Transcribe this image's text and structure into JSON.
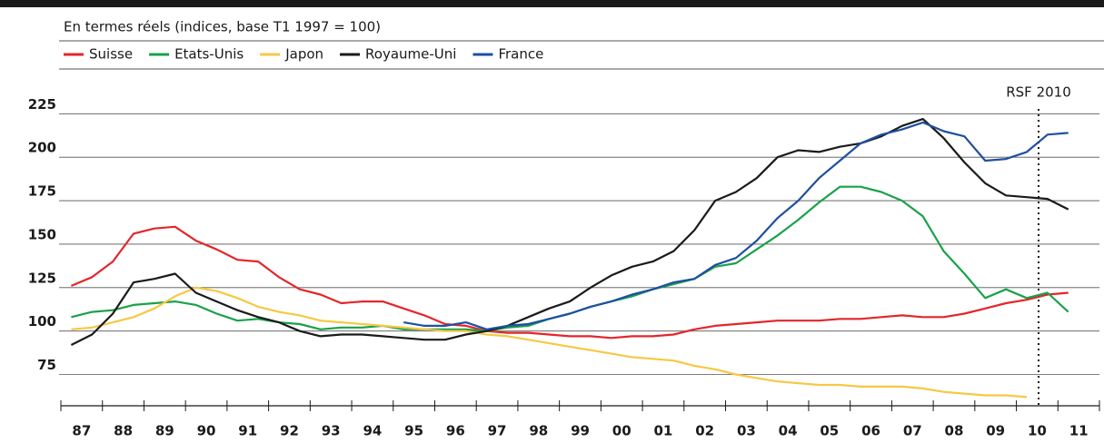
{
  "chart_data": {
    "type": "line",
    "subtitle": "En termes réels (indices, base T1 1997 = 100)",
    "annotation": "RSF 2010",
    "categories": [
      "87",
      null,
      "88",
      null,
      "89",
      null,
      "90",
      null,
      "91",
      null,
      "92",
      null,
      "93",
      null,
      "94",
      null,
      "95",
      null,
      "96",
      null,
      "97",
      null,
      "98",
      null,
      "99",
      null,
      "00",
      null,
      "01",
      null,
      "02",
      null,
      "03",
      null,
      "04",
      null,
      "05",
      null,
      "06",
      null,
      "07",
      null,
      "08",
      null,
      "09",
      null,
      "10",
      null,
      "11"
    ],
    "series": [
      {
        "name": "Suisse",
        "color": "#e3262a",
        "values": [
          126,
          131,
          140,
          156,
          159,
          160,
          152,
          147,
          141,
          140,
          131,
          124,
          121,
          116,
          117,
          117,
          113,
          109,
          104,
          103,
          100,
          99,
          99,
          98,
          97,
          97,
          96,
          97,
          97,
          98,
          101,
          103,
          104,
          105,
          106,
          106,
          106,
          107,
          107,
          108,
          109,
          108,
          108,
          110,
          113,
          116,
          118,
          121,
          122
        ]
      },
      {
        "name": "Etats-Unis",
        "color": "#1aa14a",
        "values": [
          108,
          111,
          112,
          115,
          116,
          117,
          115,
          110,
          106,
          107,
          105,
          104,
          101,
          102,
          102,
          103,
          101,
          101,
          101,
          101,
          100,
          102,
          103,
          107,
          110,
          114,
          117,
          120,
          124,
          127,
          130,
          137,
          139,
          147,
          155,
          164,
          174,
          183,
          183,
          180,
          175,
          166,
          146,
          133,
          119,
          124,
          119,
          122,
          111
        ]
      },
      {
        "name": "Japon",
        "color": "#f7c844",
        "values": [
          101,
          102,
          105,
          108,
          113,
          120,
          125,
          123,
          119,
          114,
          111,
          109,
          106,
          105,
          104,
          103,
          102,
          101,
          100,
          100,
          98,
          97,
          95,
          93,
          91,
          89,
          87,
          85,
          84,
          83,
          80,
          78,
          75,
          73,
          71,
          70,
          69,
          69,
          68,
          68,
          68,
          67,
          65,
          64,
          63,
          63,
          62,
          null,
          null
        ]
      },
      {
        "name": "Royaume-Uni",
        "color": "#1a1a1a",
        "values": [
          92,
          98,
          110,
          128,
          130,
          133,
          122,
          117,
          112,
          108,
          105,
          100,
          97,
          98,
          98,
          97,
          96,
          95,
          95,
          98,
          100,
          103,
          108,
          113,
          117,
          125,
          132,
          137,
          140,
          146,
          158,
          175,
          180,
          188,
          200,
          204,
          203,
          206,
          208,
          212,
          218,
          222,
          211,
          197,
          185,
          178,
          177,
          176,
          170
        ]
      },
      {
        "name": "France",
        "color": "#1f4fa0",
        "values": [
          null,
          null,
          null,
          null,
          null,
          null,
          null,
          null,
          null,
          null,
          null,
          null,
          null,
          null,
          null,
          null,
          105,
          103,
          103,
          105,
          101,
          103,
          104,
          107,
          110,
          114,
          117,
          121,
          124,
          128,
          130,
          138,
          142,
          152,
          165,
          175,
          188,
          198,
          208,
          213,
          216,
          220,
          215,
          212,
          198,
          199,
          203,
          213,
          214
        ]
      }
    ],
    "ylim": [
      57,
      233
    ],
    "yticks": [
      75,
      100,
      125,
      150,
      175,
      200,
      225
    ],
    "grid": true
  }
}
